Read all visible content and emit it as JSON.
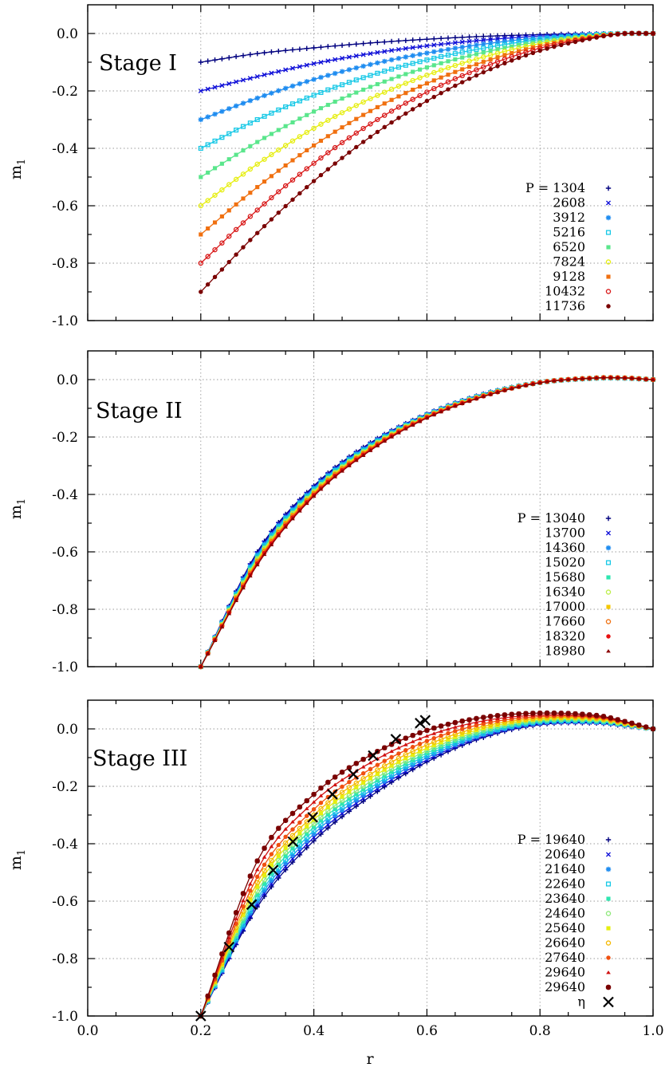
{
  "chart_data": [
    {
      "type": "line",
      "panel_label": "Stage I",
      "xlabel": "",
      "ylabel": "m",
      "ylabel_sub": "1",
      "xlim": [
        0.0,
        1.0
      ],
      "ylim": [
        -1.0,
        0.1
      ],
      "xticks": [
        0.0,
        0.2,
        0.4,
        0.6,
        0.8,
        1.0
      ],
      "xtick_labels": [],
      "yticks": [
        -1.0,
        -0.8,
        -0.6,
        -0.4,
        -0.2,
        0.0
      ],
      "ytick_labels": [
        "-1.0",
        "-0.8",
        "-0.6",
        "-0.4",
        "-0.2",
        "0.0"
      ],
      "grid": true,
      "legend_position": "right",
      "legend_prefix": "P = ",
      "series": [
        {
          "name": "1304",
          "marker": "plus",
          "color": "#00007f",
          "values": [
            -0.1,
            -0.07,
            -0.05,
            -0.033,
            -0.02,
            -0.01,
            -0.004,
            -0.001,
            0.0,
            0.0
          ]
        },
        {
          "name": "2608",
          "marker": "x",
          "color": "#1010d8",
          "values": [
            -0.2,
            -0.15,
            -0.105,
            -0.07,
            -0.043,
            -0.023,
            -0.009,
            -0.002,
            0.0,
            0.0
          ]
        },
        {
          "name": "3912",
          "marker": "asterisk",
          "color": "#1e8cf0",
          "values": [
            -0.3,
            -0.225,
            -0.16,
            -0.108,
            -0.068,
            -0.037,
            -0.015,
            -0.003,
            0.0,
            0.0
          ]
        },
        {
          "name": "5216",
          "marker": "open-square",
          "color": "#16c8e6",
          "values": [
            -0.4,
            -0.3,
            -0.215,
            -0.146,
            -0.092,
            -0.051,
            -0.021,
            -0.004,
            0.0,
            0.0
          ]
        },
        {
          "name": "6520",
          "marker": "filled-square",
          "color": "#5ae68c",
          "values": [
            -0.5,
            -0.378,
            -0.272,
            -0.186,
            -0.118,
            -0.066,
            -0.028,
            -0.006,
            0.0,
            0.0
          ]
        },
        {
          "name": "7824",
          "marker": "open-circle",
          "color": "#e6ee10",
          "values": [
            -0.6,
            -0.455,
            -0.33,
            -0.227,
            -0.145,
            -0.082,
            -0.035,
            -0.008,
            0.0,
            0.0
          ]
        },
        {
          "name": "9128",
          "marker": "filled-square",
          "color": "#f07010",
          "values": [
            -0.7,
            -0.535,
            -0.39,
            -0.27,
            -0.174,
            -0.099,
            -0.043,
            -0.01,
            0.0,
            0.0
          ]
        },
        {
          "name": "10432",
          "marker": "open-circle",
          "color": "#d81818",
          "values": [
            -0.8,
            -0.615,
            -0.452,
            -0.315,
            -0.204,
            -0.117,
            -0.051,
            -0.012,
            0.0,
            0.0
          ]
        },
        {
          "name": "11736",
          "marker": "filled-circle",
          "color": "#7a0000",
          "values": [
            -0.9,
            -0.695,
            -0.514,
            -0.36,
            -0.235,
            -0.135,
            -0.06,
            -0.014,
            0.0,
            0.0
          ]
        }
      ],
      "x": [
        0.2,
        0.3,
        0.4,
        0.5,
        0.6,
        0.7,
        0.8,
        0.9,
        0.95,
        1.0
      ]
    },
    {
      "type": "line",
      "panel_label": "Stage II",
      "xlabel": "",
      "ylabel": "m",
      "ylabel_sub": "1",
      "xlim": [
        0.0,
        1.0
      ],
      "ylim": [
        -1.0,
        0.1
      ],
      "xticks": [
        0.0,
        0.2,
        0.4,
        0.6,
        0.8,
        1.0
      ],
      "xtick_labels": [],
      "yticks": [
        -1.0,
        -0.8,
        -0.6,
        -0.4,
        -0.2,
        0.0
      ],
      "ytick_labels": [
        "-1.0",
        "-0.8",
        "-0.6",
        "-0.4",
        "-0.2",
        "0.0"
      ],
      "grid": true,
      "legend_position": "right",
      "legend_prefix": "P = ",
      "series": [
        {
          "name": "13040",
          "marker": "plus",
          "color": "#00007f",
          "values": [
            -1.0,
            -0.6,
            -0.37,
            -0.22,
            -0.12,
            -0.05,
            -0.01,
            0.005,
            0.005,
            0.0
          ]
        },
        {
          "name": "13700",
          "marker": "x",
          "color": "#1010d8",
          "values": [
            -1.0,
            -0.605,
            -0.374,
            -0.223,
            -0.121,
            -0.051,
            -0.01,
            0.005,
            0.005,
            0.0
          ]
        },
        {
          "name": "14360",
          "marker": "asterisk",
          "color": "#1e8cf0",
          "values": [
            -1.0,
            -0.61,
            -0.378,
            -0.226,
            -0.123,
            -0.052,
            -0.01,
            0.005,
            0.005,
            0.0
          ]
        },
        {
          "name": "15020",
          "marker": "open-square",
          "color": "#16c8e6",
          "values": [
            -1.0,
            -0.615,
            -0.382,
            -0.229,
            -0.124,
            -0.053,
            -0.01,
            0.005,
            0.005,
            0.0
          ]
        },
        {
          "name": "15680",
          "marker": "filled-square",
          "color": "#2ee6b0",
          "values": [
            -1.0,
            -0.62,
            -0.386,
            -0.232,
            -0.126,
            -0.054,
            -0.01,
            0.005,
            0.006,
            0.0
          ]
        },
        {
          "name": "16340",
          "marker": "open-circle",
          "color": "#bcee4a",
          "values": [
            -1.0,
            -0.625,
            -0.39,
            -0.235,
            -0.127,
            -0.055,
            -0.01,
            0.006,
            0.006,
            0.0
          ]
        },
        {
          "name": "17000",
          "marker": "filled-square",
          "color": "#f5c800",
          "values": [
            -1.0,
            -0.63,
            -0.394,
            -0.238,
            -0.129,
            -0.056,
            -0.01,
            0.006,
            0.006,
            0.0
          ]
        },
        {
          "name": "17660",
          "marker": "open-circle",
          "color": "#f07010",
          "values": [
            -1.0,
            -0.635,
            -0.398,
            -0.241,
            -0.13,
            -0.057,
            -0.01,
            0.006,
            0.006,
            0.0
          ]
        },
        {
          "name": "18320",
          "marker": "filled-circle",
          "color": "#e81010",
          "values": [
            -1.0,
            -0.64,
            -0.402,
            -0.244,
            -0.132,
            -0.058,
            -0.01,
            0.006,
            0.006,
            0.0
          ]
        },
        {
          "name": "18980",
          "marker": "triangle",
          "color": "#8a0000",
          "values": [
            -1.0,
            -0.645,
            -0.406,
            -0.247,
            -0.134,
            -0.059,
            -0.011,
            0.006,
            0.006,
            0.0
          ]
        }
      ],
      "x": [
        0.2,
        0.3,
        0.4,
        0.5,
        0.6,
        0.7,
        0.8,
        0.9,
        0.95,
        1.0
      ]
    },
    {
      "type": "line",
      "panel_label": "Stage III",
      "xlabel": "r",
      "ylabel": "m",
      "ylabel_sub": "1",
      "xlim": [
        0.0,
        1.0
      ],
      "ylim": [
        -1.0,
        0.1
      ],
      "xticks": [
        0.0,
        0.2,
        0.4,
        0.6,
        0.8,
        1.0
      ],
      "xtick_labels": [
        "0.0",
        "0.2",
        "0.4",
        "0.6",
        "0.8",
        "1.0"
      ],
      "yticks": [
        -1.0,
        -0.8,
        -0.6,
        -0.4,
        -0.2,
        0.0
      ],
      "ytick_labels": [
        "-1.0",
        "-0.8",
        "-0.6",
        "-0.4",
        "-0.2",
        "0.0"
      ],
      "grid": true,
      "legend_position": "bottom-right",
      "legend_prefix": "P = ",
      "series": [
        {
          "name": "19640",
          "marker": "plus",
          "color": "#00007f",
          "values": [
            -1.0,
            -0.62,
            -0.39,
            -0.235,
            -0.115,
            -0.03,
            0.015,
            0.02,
            0.01,
            0.0
          ]
        },
        {
          "name": "20640",
          "marker": "x",
          "color": "#1010d8",
          "values": [
            -1.0,
            -0.61,
            -0.378,
            -0.225,
            -0.108,
            -0.025,
            0.018,
            0.022,
            0.012,
            0.0
          ]
        },
        {
          "name": "21640",
          "marker": "asterisk",
          "color": "#1e8cf0",
          "values": [
            -1.0,
            -0.6,
            -0.366,
            -0.215,
            -0.1,
            -0.02,
            0.021,
            0.024,
            0.013,
            0.0
          ]
        },
        {
          "name": "22640",
          "marker": "open-square",
          "color": "#16c8e6",
          "values": [
            -1.0,
            -0.59,
            -0.354,
            -0.205,
            -0.092,
            -0.015,
            0.024,
            0.026,
            0.014,
            0.0
          ]
        },
        {
          "name": "23640",
          "marker": "filled-square",
          "color": "#2ee6b0",
          "values": [
            -1.0,
            -0.578,
            -0.342,
            -0.195,
            -0.084,
            -0.01,
            0.027,
            0.028,
            0.015,
            0.0
          ]
        },
        {
          "name": "24640",
          "marker": "open-circle",
          "color": "#8ee87a",
          "values": [
            -1.0,
            -0.565,
            -0.33,
            -0.184,
            -0.076,
            -0.004,
            0.03,
            0.031,
            0.016,
            0.0
          ]
        },
        {
          "name": "25640",
          "marker": "filled-square",
          "color": "#e6ee10",
          "values": [
            -1.0,
            -0.55,
            -0.316,
            -0.172,
            -0.067,
            0.002,
            0.034,
            0.034,
            0.018,
            0.0
          ]
        },
        {
          "name": "26640",
          "marker": "open-circle",
          "color": "#f5b800",
          "values": [
            -1.0,
            -0.535,
            -0.3,
            -0.158,
            -0.056,
            0.009,
            0.038,
            0.037,
            0.02,
            0.0
          ]
        },
        {
          "name": "27640",
          "marker": "filled-circle",
          "color": "#f05010",
          "values": [
            -1.0,
            -0.515,
            -0.28,
            -0.14,
            -0.042,
            0.018,
            0.043,
            0.04,
            0.022,
            0.0
          ]
        },
        {
          "name": "29640",
          "marker": "triangle",
          "color": "#d01010",
          "values": [
            -1.0,
            -0.49,
            -0.255,
            -0.118,
            -0.025,
            0.028,
            0.048,
            0.043,
            0.024,
            0.0
          ]
        },
        {
          "name": "29640",
          "marker": "star",
          "color": "#7a0000",
          "values": [
            -1.0,
            -0.46,
            -0.228,
            -0.092,
            -0.005,
            0.04,
            0.055,
            0.047,
            0.026,
            0.0
          ]
        }
      ],
      "x": [
        0.2,
        0.3,
        0.4,
        0.5,
        0.6,
        0.7,
        0.8,
        0.9,
        0.95,
        1.0
      ],
      "eta": {
        "name": "η",
        "marker": "cross",
        "color": "#000000",
        "x": [
          0.2,
          0.25,
          0.29,
          0.328,
          0.363,
          0.398,
          0.433,
          0.47,
          0.505,
          0.545,
          0.588,
          0.597
        ],
        "y": [
          -1.0,
          -0.76,
          -0.612,
          -0.492,
          -0.393,
          -0.308,
          -0.228,
          -0.158,
          -0.093,
          -0.036,
          0.02,
          0.03
        ]
      }
    }
  ]
}
